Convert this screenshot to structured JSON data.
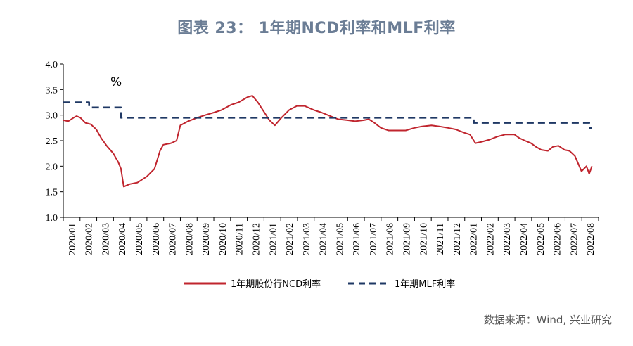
{
  "title": "图表 23： 1年期NCD利率和MLF利率",
  "source": "数据来源：Wind, 兴业研究",
  "colors": {
    "ncd": "#c0252e",
    "mlf": "#1f3864",
    "title": "#6b7d95"
  },
  "chart_data": {
    "type": "line",
    "unit_label": "%",
    "ylim": [
      1.0,
      4.0
    ],
    "yticks": [
      "1.0",
      "1.5",
      "2.0",
      "2.5",
      "3.0",
      "3.5",
      "4.0"
    ],
    "x_tick_labels": [
      "2020/01",
      "2020/02",
      "2020/03",
      "2020/04",
      "2020/05",
      "2020/06",
      "2020/07",
      "2020/08",
      "2020/09",
      "2020/10",
      "2020/11",
      "2020/12",
      "2021/01",
      "2021/02",
      "2021/03",
      "2021/04",
      "2021/05",
      "2021/06",
      "2021/07",
      "2021/08",
      "2021/09",
      "2021/10",
      "2021/11",
      "2021/12",
      "2022/01",
      "2022/02",
      "2022/03",
      "2022/04",
      "2022/05",
      "2022/06",
      "2022/07",
      "2022/08"
    ],
    "legend_position": "bottom",
    "series": [
      {
        "name": "1年期股份行NCD利率",
        "style": "solid",
        "points": [
          [
            "2020/01/01",
            2.9
          ],
          [
            "2020/01/10",
            2.88
          ],
          [
            "2020/01/20",
            2.95
          ],
          [
            "2020/01/25",
            2.98
          ],
          [
            "2020/02/01",
            2.95
          ],
          [
            "2020/02/10",
            2.85
          ],
          [
            "2020/02/20",
            2.82
          ],
          [
            "2020/03/01",
            2.72
          ],
          [
            "2020/03/10",
            2.55
          ],
          [
            "2020/03/20",
            2.4
          ],
          [
            "2020/04/01",
            2.25
          ],
          [
            "2020/04/10",
            2.08
          ],
          [
            "2020/04/15",
            1.95
          ],
          [
            "2020/04/20",
            1.6
          ],
          [
            "2020/05/01",
            1.65
          ],
          [
            "2020/05/15",
            1.68
          ],
          [
            "2020/06/01",
            1.8
          ],
          [
            "2020/06/15",
            1.95
          ],
          [
            "2020/06/25",
            2.3
          ],
          [
            "2020/07/01",
            2.42
          ],
          [
            "2020/07/15",
            2.45
          ],
          [
            "2020/07/25",
            2.5
          ],
          [
            "2020/08/01",
            2.8
          ],
          [
            "2020/08/15",
            2.88
          ],
          [
            "2020/09/01",
            2.95
          ],
          [
            "2020/09/15",
            3.0
          ],
          [
            "2020/10/01",
            3.05
          ],
          [
            "2020/10/15",
            3.1
          ],
          [
            "2020/11/01",
            3.2
          ],
          [
            "2020/11/15",
            3.25
          ],
          [
            "2020/12/01",
            3.35
          ],
          [
            "2020/12/10",
            3.38
          ],
          [
            "2020/12/20",
            3.25
          ],
          [
            "2021/01/01",
            3.05
          ],
          [
            "2021/01/10",
            2.9
          ],
          [
            "2021/01/20",
            2.8
          ],
          [
            "2021/02/01",
            2.95
          ],
          [
            "2021/02/15",
            3.1
          ],
          [
            "2021/03/01",
            3.18
          ],
          [
            "2021/03/15",
            3.18
          ],
          [
            "2021/04/01",
            3.1
          ],
          [
            "2021/04/15",
            3.05
          ],
          [
            "2021/05/01",
            2.98
          ],
          [
            "2021/05/15",
            2.92
          ],
          [
            "2021/06/01",
            2.9
          ],
          [
            "2021/06/15",
            2.88
          ],
          [
            "2021/07/01",
            2.9
          ],
          [
            "2021/07/10",
            2.92
          ],
          [
            "2021/07/20",
            2.85
          ],
          [
            "2021/08/01",
            2.75
          ],
          [
            "2021/08/15",
            2.7
          ],
          [
            "2021/09/01",
            2.7
          ],
          [
            "2021/09/15",
            2.7
          ],
          [
            "2021/10/01",
            2.75
          ],
          [
            "2021/10/15",
            2.78
          ],
          [
            "2021/11/01",
            2.8
          ],
          [
            "2021/11/15",
            2.78
          ],
          [
            "2021/12/01",
            2.75
          ],
          [
            "2021/12/15",
            2.72
          ],
          [
            "2022/01/01",
            2.65
          ],
          [
            "2022/01/10",
            2.62
          ],
          [
            "2022/01/20",
            2.45
          ],
          [
            "2022/02/01",
            2.48
          ],
          [
            "2022/02/15",
            2.52
          ],
          [
            "2022/03/01",
            2.58
          ],
          [
            "2022/03/15",
            2.62
          ],
          [
            "2022/04/01",
            2.62
          ],
          [
            "2022/04/10",
            2.55
          ],
          [
            "2022/04/20",
            2.5
          ],
          [
            "2022/05/01",
            2.45
          ],
          [
            "2022/05/10",
            2.38
          ],
          [
            "2022/05/20",
            2.32
          ],
          [
            "2022/06/01",
            2.3
          ],
          [
            "2022/06/10",
            2.38
          ],
          [
            "2022/06/20",
            2.4
          ],
          [
            "2022/07/01",
            2.32
          ],
          [
            "2022/07/10",
            2.3
          ],
          [
            "2022/07/20",
            2.2
          ],
          [
            "2022/08/01",
            1.9
          ],
          [
            "2022/08/10",
            2.0
          ],
          [
            "2022/08/15",
            1.85
          ],
          [
            "2022/08/20",
            2.0
          ]
        ]
      },
      {
        "name": "1年期MLF利率",
        "style": "dashed",
        "points": [
          [
            "2020/01/01",
            3.25
          ],
          [
            "2020/02/17",
            3.25
          ],
          [
            "2020/02/17",
            3.15
          ],
          [
            "2020/04/15",
            3.15
          ],
          [
            "2020/04/15",
            2.95
          ],
          [
            "2022/01/17",
            2.95
          ],
          [
            "2022/01/17",
            2.85
          ],
          [
            "2022/08/15",
            2.85
          ],
          [
            "2022/08/15",
            2.75
          ],
          [
            "2022/08/20",
            2.75
          ]
        ]
      }
    ]
  }
}
